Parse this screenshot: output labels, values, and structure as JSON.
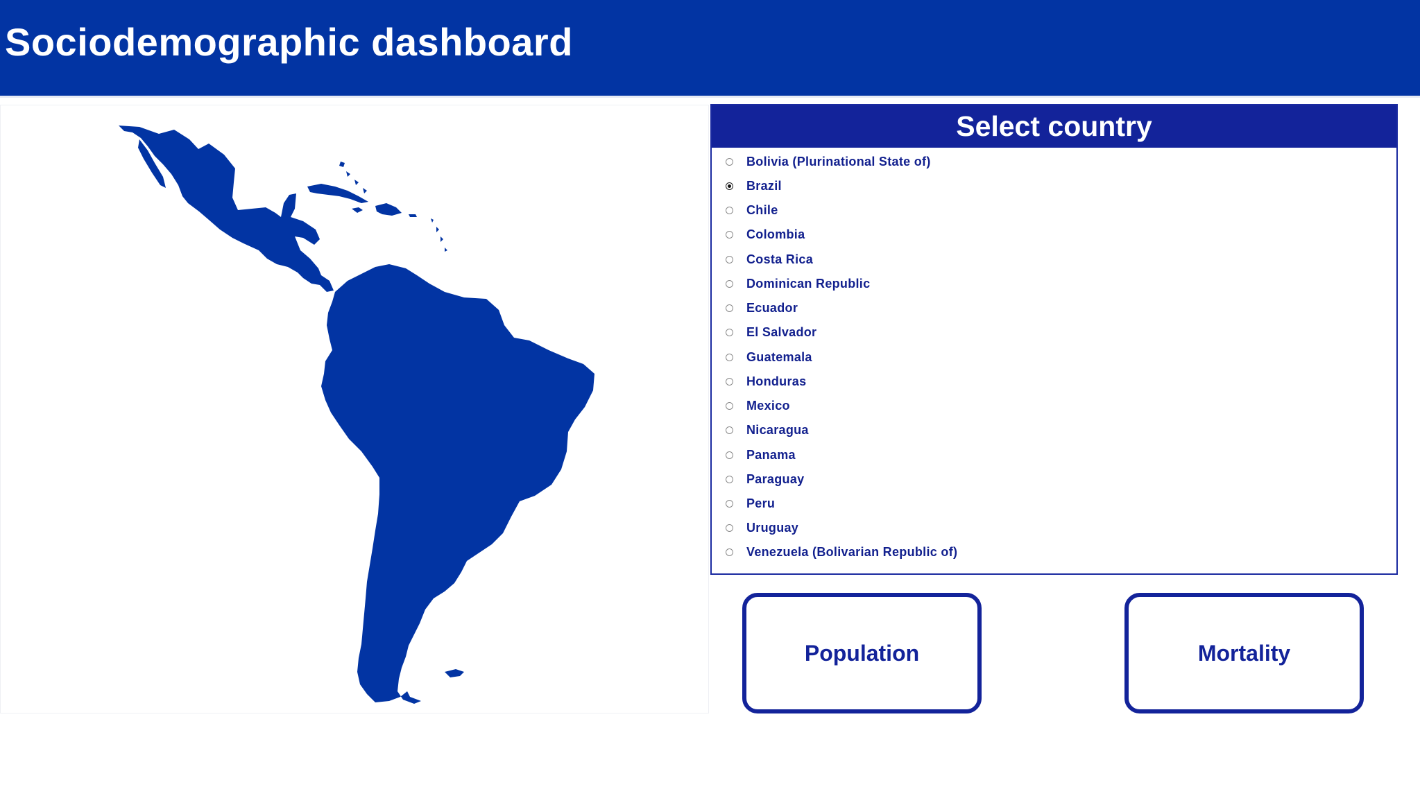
{
  "header": {
    "title": "Sociodemographic dashboard"
  },
  "map": {
    "region": "Latin America",
    "fill_color": "#0234a3"
  },
  "country_selector": {
    "title": "Select country",
    "selected": "Brazil",
    "options": [
      "Bolivia (Plurinational State of)",
      "Brazil",
      "Chile",
      "Colombia",
      "Costa Rica",
      "Dominican Republic",
      "Ecuador",
      "El Salvador",
      "Guatemala",
      "Honduras",
      "Mexico",
      "Nicaragua",
      "Panama",
      "Paraguay",
      "Peru",
      "Uruguay",
      "Venezuela (Bolivarian Republic of)"
    ]
  },
  "buttons": {
    "population_label": "Population",
    "mortality_label": "Mortality"
  },
  "colors": {
    "header_bg": "#0234a3",
    "panel_header_bg": "#13239a",
    "accent_text": "#12208e"
  }
}
